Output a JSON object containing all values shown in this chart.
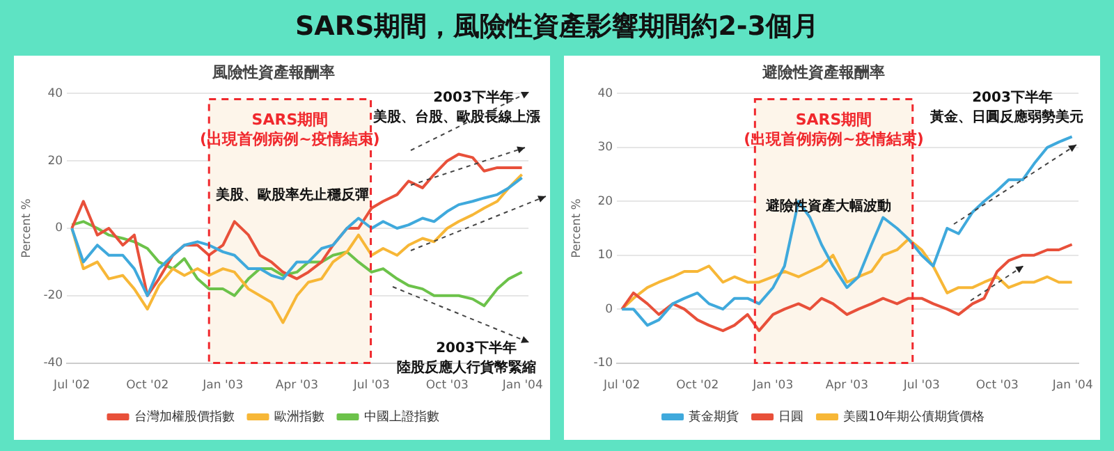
{
  "chart_data": [
    {
      "type": "line",
      "title": "風險性資產報酬率",
      "ylabel": "Percent %",
      "annotations": [
        "SARS期間，風險性資產影響期間約2-3個月",
        "美股、歐股率先止穩反彈",
        "2003下半年",
        "美股、台股、歐股長線上漲",
        "2003下半年",
        "陸股反應人行貨幣緊縮"
      ],
      "x": [
        "2002-07-01",
        "2002-07-15",
        "2002-08-01",
        "2002-08-15",
        "2002-09-01",
        "2002-09-15",
        "2002-10-01",
        "2002-10-15",
        "2002-11-01",
        "2002-11-15",
        "2002-12-01",
        "2002-12-15",
        "2003-01-01",
        "2003-01-15",
        "2003-02-01",
        "2003-02-15",
        "2003-03-01",
        "2003-03-15",
        "2003-04-01",
        "2003-04-15",
        "2003-05-01",
        "2003-05-15",
        "2003-06-01",
        "2003-06-15",
        "2003-07-01",
        "2003-07-15",
        "2003-08-01",
        "2003-08-15",
        "2003-09-01",
        "2003-09-15",
        "2003-10-01",
        "2003-10-15",
        "2003-11-01",
        "2003-11-15",
        "2003-12-01",
        "2003-12-15",
        "2003-12-31"
      ],
      "series": [
        {
          "color": "#3fa9dc",
          "values": [
            0,
            -10,
            -5,
            -8,
            -8,
            -12,
            -20,
            -12,
            -8,
            -5,
            -4,
            -5,
            -7,
            -8,
            -12,
            -12,
            -14,
            -15,
            -10,
            -10,
            -6,
            -5,
            0,
            3,
            0,
            2,
            0,
            1,
            3,
            2,
            5,
            7,
            8,
            9,
            10,
            12,
            15
          ]
        },
        {
          "name": "台灣加權股價指數",
          "color": "#e8503a",
          "values": [
            0,
            8,
            -2,
            0,
            -5,
            -2,
            -20,
            -15,
            -8,
            -5,
            -5,
            -8,
            -5,
            2,
            -2,
            -8,
            -10,
            -13,
            -15,
            -13,
            -10,
            -5,
            0,
            0,
            6,
            8,
            10,
            14,
            12,
            16,
            20,
            22,
            21,
            17,
            18,
            18,
            18
          ]
        },
        {
          "name": "歐洲指數",
          "color": "#f7b737",
          "values": [
            0,
            -12,
            -10,
            -15,
            -14,
            -18,
            -24,
            -17,
            -12,
            -14,
            -12,
            -14,
            -12,
            -13,
            -18,
            -20,
            -22,
            -28,
            -20,
            -16,
            -15,
            -10,
            -7,
            -2,
            -8,
            -6,
            -8,
            -5,
            -3,
            -4,
            0,
            2,
            4,
            6,
            8,
            12,
            16
          ]
        },
        {
          "name": "中國上證指數",
          "color": "#6cc24a",
          "values": [
            1,
            2,
            0,
            -2,
            -3,
            -4,
            -6,
            -10,
            -12,
            -9,
            -15,
            -18,
            -18,
            -20,
            -15,
            -12,
            -12,
            -14,
            -13,
            -10,
            -10,
            -8,
            -7,
            -10,
            -13,
            -12,
            -15,
            -17,
            -18,
            -20,
            -20,
            -20,
            -21,
            -23,
            -18,
            -15,
            -13
          ]
        }
      ],
      "bands": [
        {
          "axis": "x",
          "from": "2002-12-15",
          "to": "2003-06-30",
          "label": "SARS期間\n(出現首例病例~疫情結束)",
          "color": "#fdf5ea"
        }
      ],
      "xlim": [
        "2002-06-25",
        "2004-01-08"
      ],
      "ylim": [
        -40,
        40
      ],
      "yticks": [
        -40,
        -20,
        0,
        20,
        40
      ],
      "xticks": [
        {
          "value": "2002-07-01",
          "label": "Jul '02"
        },
        {
          "value": "2002-10-01",
          "label": "Oct '02"
        },
        {
          "value": "2003-01-01",
          "label": "Jan '03"
        },
        {
          "value": "2003-04-01",
          "label": "Apr '03"
        },
        {
          "value": "2003-07-01",
          "label": "Jul '03"
        },
        {
          "value": "2003-10-01",
          "label": "Oct '03"
        },
        {
          "value": "2004-01-01",
          "label": "Jan '04"
        }
      ],
      "grid": "y",
      "legend": "bottom",
      "marker": "none"
    },
    {
      "type": "line",
      "title": "避險性資產報酬率",
      "ylabel": "Percent %",
      "annotations": [
        "避險性資產大幅波動",
        "2003下半年",
        "黃金、日圓反應弱勢美元"
      ],
      "x": [
        "2002-07-01",
        "2002-07-15",
        "2002-08-01",
        "2002-08-15",
        "2002-09-01",
        "2002-09-15",
        "2002-10-01",
        "2002-10-15",
        "2002-11-01",
        "2002-11-15",
        "2002-12-01",
        "2002-12-15",
        "2003-01-01",
        "2003-01-15",
        "2003-02-01",
        "2003-02-15",
        "2003-03-01",
        "2003-03-15",
        "2003-04-01",
        "2003-04-15",
        "2003-05-01",
        "2003-05-15",
        "2003-06-01",
        "2003-06-15",
        "2003-07-01",
        "2003-07-15",
        "2003-08-01",
        "2003-08-15",
        "2003-09-01",
        "2003-09-15",
        "2003-10-01",
        "2003-10-15",
        "2003-11-01",
        "2003-11-15",
        "2003-12-01",
        "2003-12-15",
        "2003-12-31"
      ],
      "series": [
        {
          "name": "黃金期貨",
          "color": "#3fa9dc",
          "values": [
            0,
            0,
            -3,
            -2,
            1,
            2,
            3,
            1,
            0,
            2,
            2,
            1,
            4,
            8,
            20,
            17,
            12,
            8,
            4,
            6,
            12,
            17,
            15,
            13,
            10,
            8,
            15,
            14,
            18,
            20,
            22,
            24,
            24,
            27,
            30,
            31,
            32
          ]
        },
        {
          "name": "日圓",
          "color": "#e8503a",
          "values": [
            0,
            3,
            1,
            -1,
            1,
            0,
            -2,
            -3,
            -4,
            -3,
            -1,
            -4,
            -1,
            0,
            1,
            0,
            2,
            1,
            -1,
            0,
            1,
            2,
            1,
            2,
            2,
            1,
            0,
            -1,
            1,
            2,
            7,
            9,
            10,
            10,
            11,
            11,
            12
          ]
        },
        {
          "name": "美國10年期公債期貨價格",
          "color": "#f7b737",
          "values": [
            0,
            2,
            4,
            5,
            6,
            7,
            7,
            8,
            5,
            6,
            5,
            5,
            6,
            7,
            6,
            7,
            8,
            10,
            5,
            6,
            7,
            10,
            11,
            13,
            11,
            8,
            3,
            4,
            4,
            5,
            6,
            4,
            5,
            5,
            6,
            5,
            5
          ]
        }
      ],
      "bands": [
        {
          "axis": "x",
          "from": "2002-12-10",
          "to": "2003-06-20",
          "label": "SARS期間\n(出現首例病例~疫情結束)",
          "color": "#fdf5ea"
        }
      ],
      "xlim": [
        "2002-06-25",
        "2004-01-08"
      ],
      "ylim": [
        -10,
        40
      ],
      "yticks": [
        -10,
        0,
        10,
        20,
        30,
        40
      ],
      "xticks": [
        {
          "value": "2002-07-01",
          "label": "Jul '02"
        },
        {
          "value": "2002-10-01",
          "label": "Oct '02"
        },
        {
          "value": "2003-01-01",
          "label": "Jan '03"
        },
        {
          "value": "2003-04-01",
          "label": "Apr '03"
        },
        {
          "value": "2003-07-01",
          "label": "Jul '03"
        },
        {
          "value": "2003-10-01",
          "label": "Oct '03"
        },
        {
          "value": "2004-01-01",
          "label": "Jan '04"
        }
      ],
      "grid": "y",
      "legend": "bottom",
      "marker": "none"
    }
  ]
}
